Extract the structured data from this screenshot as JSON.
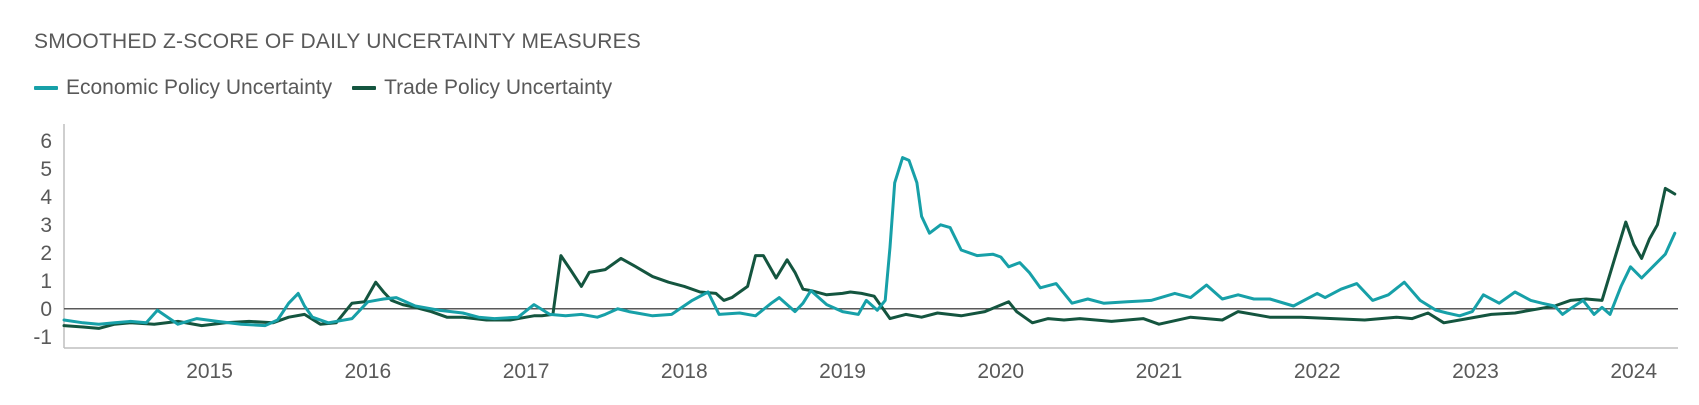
{
  "chart_data": {
    "type": "line",
    "title": "SMOOTHED Z-SCORE OF DAILY UNCERTAINTY MEASURES",
    "xlabel": "",
    "ylabel": "",
    "xlim": [
      2014.58,
      2024.78
    ],
    "ylim": [
      -1.4,
      6.6
    ],
    "yticks": [
      6,
      5,
      4,
      3,
      2,
      1,
      0,
      -1
    ],
    "xticks": [
      "2015",
      "2016",
      "2017",
      "2018",
      "2019",
      "2020",
      "2021",
      "2022",
      "2023",
      "2024"
    ],
    "grid": false,
    "legend_position": "top-left",
    "series": [
      {
        "name": "Economic Policy Uncertainty",
        "color": "#17a0a8",
        "x": [
          2014.58,
          2014.7,
          2014.8,
          2014.9,
          2015.0,
          2015.1,
          2015.17,
          2015.3,
          2015.42,
          2015.55,
          2015.7,
          2015.85,
          2015.93,
          2016.0,
          2016.06,
          2016.1,
          2016.15,
          2016.25,
          2016.4,
          2016.5,
          2016.6,
          2016.68,
          2016.8,
          2016.95,
          2017.1,
          2017.2,
          2017.3,
          2017.45,
          2017.55,
          2017.65,
          2017.75,
          2017.85,
          2017.95,
          2018.0,
          2018.08,
          2018.15,
          2018.3,
          2018.42,
          2018.55,
          2018.65,
          2018.72,
          2018.85,
          2018.95,
          2019.05,
          2019.1,
          2019.2,
          2019.25,
          2019.3,
          2019.4,
          2019.5,
          2019.6,
          2019.65,
          2019.72,
          2019.77,
          2019.8,
          2019.83,
          2019.88,
          2019.92,
          2019.97,
          2020.0,
          2020.05,
          2020.12,
          2020.18,
          2020.25,
          2020.35,
          2020.45,
          2020.5,
          2020.55,
          2020.62,
          2020.68,
          2020.75,
          2020.85,
          2020.95,
          2021.05,
          2021.15,
          2021.3,
          2021.45,
          2021.6,
          2021.7,
          2021.8,
          2021.9,
          2022.0,
          2022.1,
          2022.2,
          2022.35,
          2022.5,
          2022.55,
          2022.65,
          2022.75,
          2022.85,
          2022.95,
          2023.05,
          2023.15,
          2023.25,
          2023.32,
          2023.4,
          2023.48,
          2023.55,
          2023.65,
          2023.75,
          2023.85,
          2023.92,
          2024.0,
          2024.05,
          2024.1,
          2024.18,
          2024.25,
          2024.3,
          2024.35,
          2024.42,
          2024.48,
          2024.55,
          2024.62,
          2024.7,
          2024.76
        ],
        "values": [
          -0.4,
          -0.5,
          -0.55,
          -0.5,
          -0.45,
          -0.5,
          -0.05,
          -0.55,
          -0.35,
          -0.45,
          -0.55,
          -0.6,
          -0.4,
          0.2,
          0.55,
          0.1,
          -0.3,
          -0.5,
          -0.35,
          0.25,
          0.35,
          0.4,
          0.1,
          -0.05,
          -0.15,
          -0.3,
          -0.35,
          -0.3,
          0.15,
          -0.2,
          -0.25,
          -0.2,
          -0.3,
          -0.2,
          0.0,
          -0.1,
          -0.25,
          -0.2,
          0.3,
          0.6,
          -0.2,
          -0.15,
          -0.25,
          0.2,
          0.4,
          -0.1,
          0.2,
          0.65,
          0.15,
          -0.1,
          -0.2,
          0.3,
          -0.05,
          0.3,
          2.2,
          4.5,
          5.4,
          5.3,
          4.5,
          3.3,
          2.7,
          3.0,
          2.9,
          2.1,
          1.9,
          1.95,
          1.85,
          1.5,
          1.65,
          1.3,
          0.75,
          0.9,
          0.2,
          0.35,
          0.2,
          0.25,
          0.3,
          0.55,
          0.4,
          0.85,
          0.35,
          0.5,
          0.35,
          0.35,
          0.1,
          0.55,
          0.4,
          0.7,
          0.9,
          0.3,
          0.5,
          0.95,
          0.3,
          -0.05,
          -0.15,
          -0.25,
          -0.1,
          0.5,
          0.2,
          0.6,
          0.3,
          0.2,
          0.1,
          -0.2,
          0.0,
          0.3,
          -0.2,
          0.05,
          -0.2,
          0.8,
          1.5,
          1.1,
          1.5,
          1.95,
          2.7
        ]
      },
      {
        "name": "Trade Policy Uncertainty",
        "color": "#14553f",
        "x": [
          2014.58,
          2014.7,
          2014.8,
          2014.9,
          2015.0,
          2015.15,
          2015.3,
          2015.45,
          2015.6,
          2015.75,
          2015.9,
          2016.0,
          2016.1,
          2016.2,
          2016.3,
          2016.4,
          2016.48,
          2016.55,
          2016.6,
          2016.65,
          2016.72,
          2016.8,
          2016.9,
          2017.0,
          2017.1,
          2017.25,
          2017.4,
          2017.5,
          2017.55,
          2017.6,
          2017.67,
          2017.72,
          2017.78,
          2017.85,
          2017.9,
          2018.0,
          2018.1,
          2018.18,
          2018.3,
          2018.4,
          2018.5,
          2018.6,
          2018.7,
          2018.75,
          2018.8,
          2018.9,
          2018.95,
          2019.0,
          2019.08,
          2019.15,
          2019.2,
          2019.25,
          2019.3,
          2019.4,
          2019.5,
          2019.55,
          2019.62,
          2019.7,
          2019.8,
          2019.9,
          2020.0,
          2020.1,
          2020.25,
          2020.4,
          2020.55,
          2020.6,
          2020.7,
          2020.8,
          2020.9,
          2021.0,
          2021.2,
          2021.4,
          2021.5,
          2021.7,
          2021.9,
          2022.0,
          2022.2,
          2022.4,
          2022.6,
          2022.8,
          2023.0,
          2023.1,
          2023.2,
          2023.3,
          2023.45,
          2023.6,
          2023.75,
          2023.9,
          2024.0,
          2024.1,
          2024.2,
          2024.3,
          2024.38,
          2024.45,
          2024.5,
          2024.55,
          2024.6,
          2024.65,
          2024.7,
          2024.73,
          2024.76
        ],
        "values": [
          -0.6,
          -0.65,
          -0.7,
          -0.55,
          -0.5,
          -0.55,
          -0.45,
          -0.6,
          -0.5,
          -0.45,
          -0.5,
          -0.3,
          -0.2,
          -0.55,
          -0.5,
          0.2,
          0.25,
          0.95,
          0.6,
          0.3,
          0.15,
          0.05,
          -0.1,
          -0.3,
          -0.3,
          -0.4,
          -0.4,
          -0.3,
          -0.25,
          -0.25,
          -0.2,
          1.9,
          1.4,
          0.8,
          1.3,
          1.4,
          1.8,
          1.55,
          1.15,
          0.95,
          0.8,
          0.6,
          0.55,
          0.3,
          0.4,
          0.8,
          1.9,
          1.9,
          1.1,
          1.75,
          1.3,
          0.7,
          0.65,
          0.5,
          0.55,
          0.6,
          0.55,
          0.45,
          -0.35,
          -0.2,
          -0.3,
          -0.15,
          -0.25,
          -0.1,
          0.25,
          -0.1,
          -0.5,
          -0.35,
          -0.4,
          -0.35,
          -0.45,
          -0.35,
          -0.55,
          -0.3,
          -0.4,
          -0.1,
          -0.3,
          -0.3,
          -0.35,
          -0.4,
          -0.3,
          -0.35,
          -0.15,
          -0.5,
          -0.35,
          -0.2,
          -0.15,
          0.0,
          0.1,
          0.3,
          0.35,
          0.3,
          1.8,
          3.1,
          2.3,
          1.8,
          2.5,
          3.0,
          4.3,
          4.2,
          4.1
        ]
      }
    ]
  }
}
